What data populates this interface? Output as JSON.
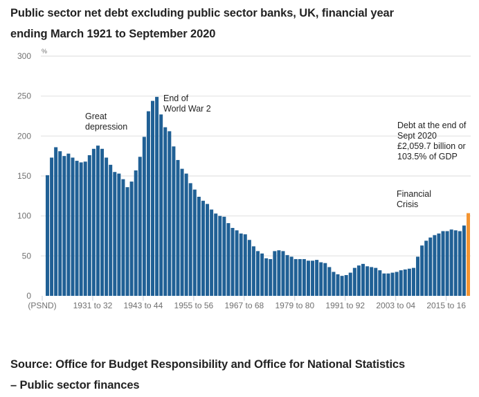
{
  "chart_data": {
    "type": "bar",
    "title": "Public sector net debt excluding public sector banks, UK, financial year ending March 1921 to September 2020",
    "title_lines": [
      "Public sector net debt excluding public sector banks, UK, financial year",
      "ending March 1921 to September 2020"
    ],
    "ylabel": "%",
    "xlabel": "",
    "ylim": [
      0,
      300
    ],
    "yticks": [
      0,
      50,
      100,
      150,
      200,
      250,
      300
    ],
    "grid": true,
    "legend": "none",
    "x_tick_labels": [
      "(PSND)",
      "1931 to 32",
      "1943 to 44",
      "1955 to 56",
      "1967 to 68",
      "1979 to 80",
      "1991 to 92",
      "2003 to 04",
      "2015 to 16"
    ],
    "x_tick_every": 12,
    "colors": {
      "bar": "#206095",
      "highlight": "#f39431",
      "grid": "#e2e2e2",
      "tick_text": "#707070"
    },
    "categories_note": "Financial years ending March 1921 to March 2020, then end of Sept 2020",
    "first_year": 1920,
    "series": [
      {
        "name": "Public sector net debt (% of GDP)",
        "values": [
          151,
          173,
          186,
          181,
          175,
          178,
          173,
          169,
          167,
          168,
          176,
          184,
          188,
          184,
          173,
          164,
          155,
          153,
          146,
          136,
          143,
          157,
          174,
          199,
          231,
          244,
          249,
          227,
          211,
          206,
          187,
          170,
          159,
          153,
          141,
          133,
          124,
          119,
          115,
          108,
          103,
          100,
          99,
          91,
          85,
          82,
          78,
          77,
          70,
          62,
          56,
          53,
          47,
          46,
          56,
          57,
          56,
          51,
          49,
          46,
          46,
          46,
          44,
          44,
          45,
          42,
          41,
          36,
          30,
          27,
          25,
          26,
          29,
          35,
          38,
          40,
          37,
          36,
          35,
          32,
          28,
          28,
          29,
          30,
          32,
          33,
          34,
          35,
          49,
          63,
          69,
          73,
          76,
          78,
          81,
          81,
          83,
          82,
          81,
          88,
          103.5
        ],
        "highlight_last": true
      }
    ],
    "annotations": [
      {
        "id": "great-depression",
        "lines": [
          "Great",
          "depression"
        ]
      },
      {
        "id": "end-of-ww2",
        "lines": [
          "End of",
          "World War 2"
        ]
      },
      {
        "id": "financial-crisis",
        "lines": [
          "Financial",
          "Crisis"
        ]
      },
      {
        "id": "latest-debt",
        "lines": [
          "Debt at the end of",
          "Sept 2020",
          "£2,059.7 billion or",
          "103.5% of GDP"
        ]
      }
    ]
  },
  "source": {
    "lines": [
      "Source: Office for Budget Responsibility and Office for National Statistics",
      "– Public sector finances"
    ]
  }
}
